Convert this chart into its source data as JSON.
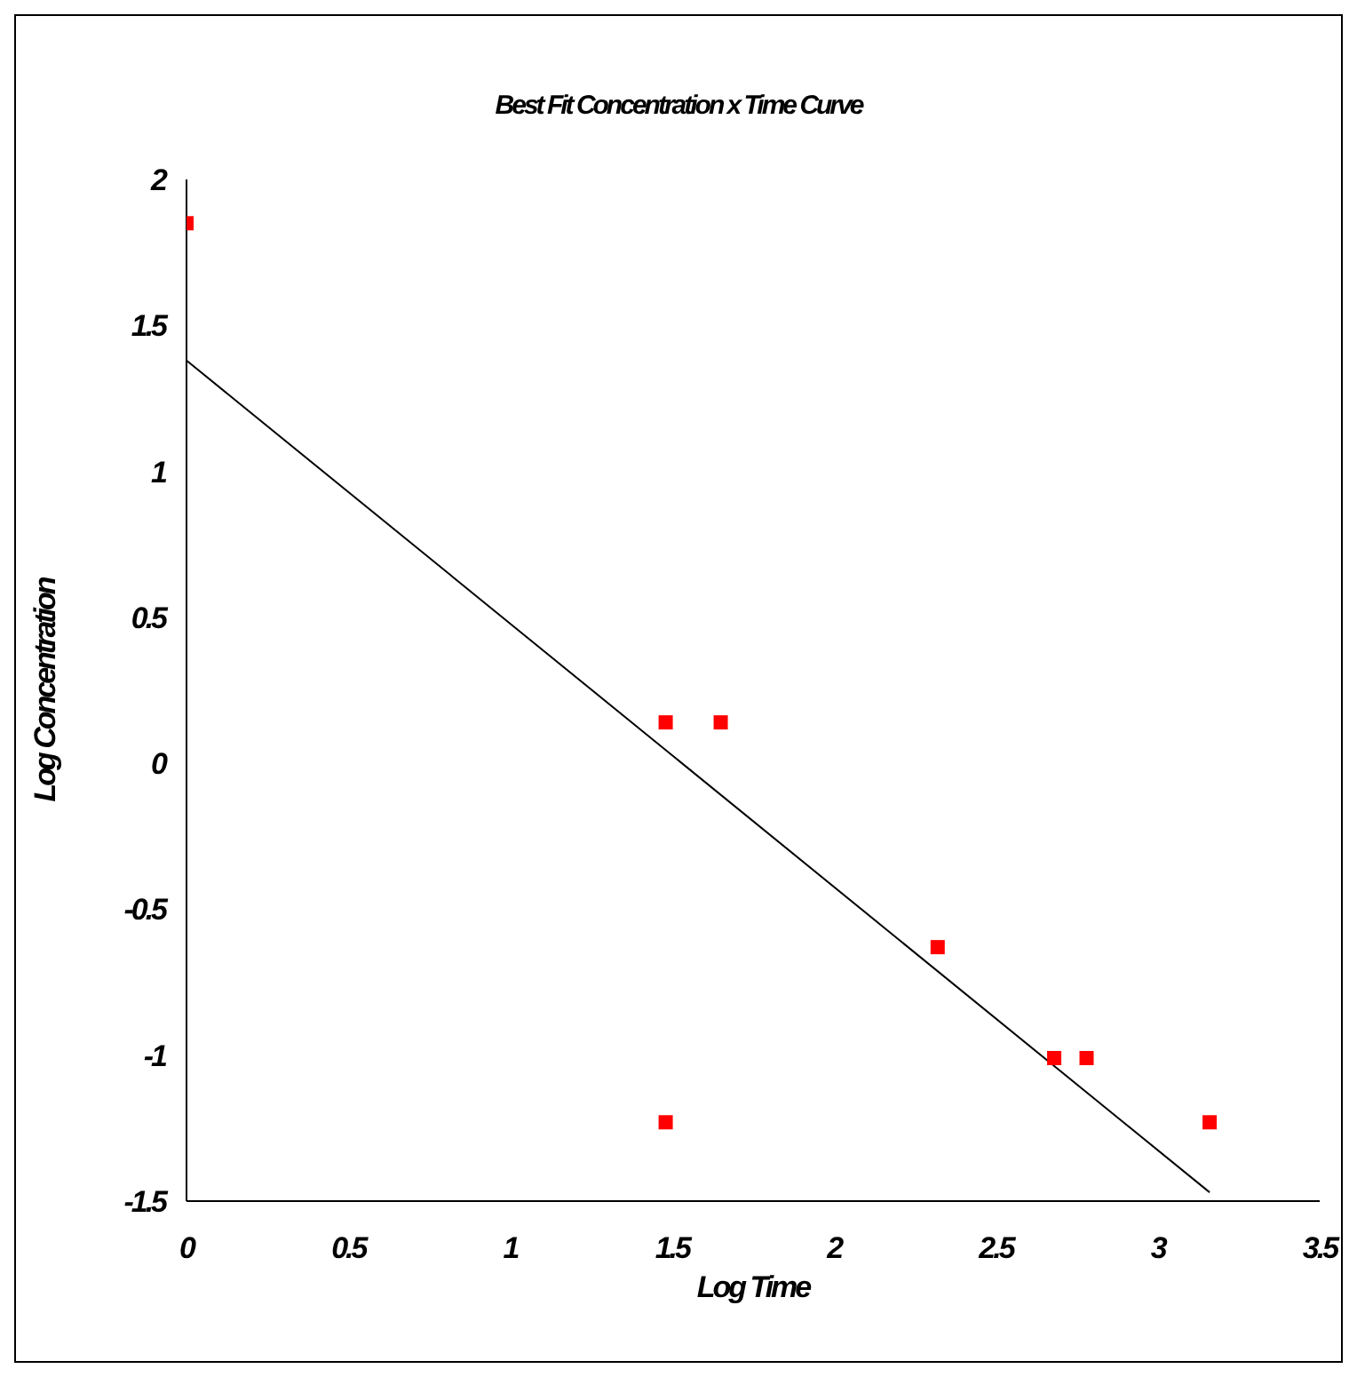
{
  "chart_data": {
    "type": "scatter",
    "title": "Best Fit Concentration x Time Curve",
    "xlabel": "Log Time",
    "ylabel": "Log Concentration",
    "series": [
      {
        "color": "#ff0000",
        "x": [
          0,
          1.48,
          1.65,
          1.48,
          2.32,
          2.68,
          2.78,
          3.16
        ],
        "values": [
          1.85,
          0.14,
          0.14,
          -1.23,
          -0.63,
          -1.01,
          -1.01,
          -1.23
        ],
        "marker": "square"
      },
      {
        "type": "line",
        "color": "#000000",
        "x": [
          0,
          3.16
        ],
        "values": [
          1.38,
          -1.47
        ],
        "marker": "none"
      }
    ],
    "xlim": [
      0,
      3.5
    ],
    "xticks": [
      0,
      0.5,
      1,
      1.5,
      2,
      2.5,
      3,
      3.5
    ],
    "ylim": [
      -1.5,
      2
    ],
    "yticks": [
      -1.5,
      -1,
      -0.5,
      0,
      0.5,
      1,
      1.5,
      2
    ],
    "grid": false,
    "legend": false
  }
}
